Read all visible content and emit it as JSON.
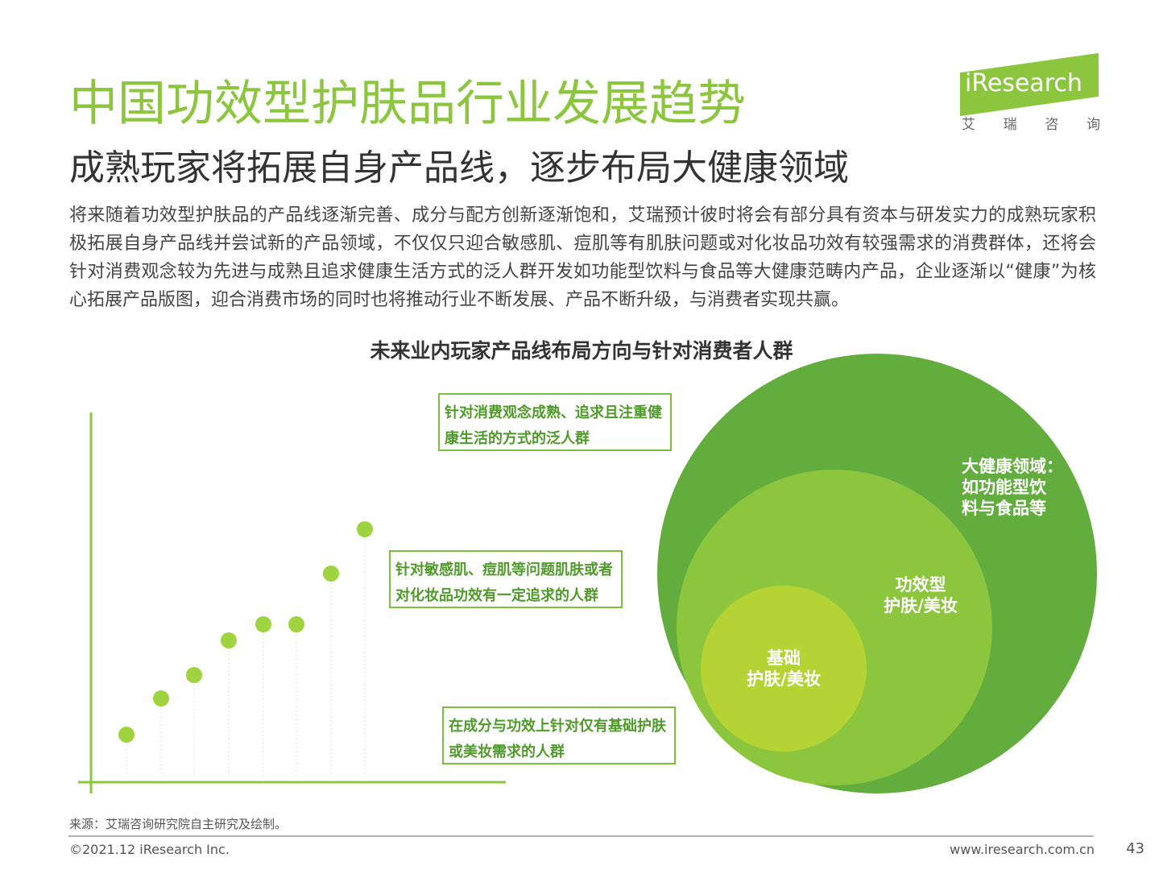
{
  "header": {
    "title": "中国功效型护肤品行业发展趋势",
    "subtitle": "成熟玩家将拓展自身产品线，逐步布局大健康领域"
  },
  "logo": {
    "brand": "iResearch",
    "chinese": [
      "艾",
      "瑞",
      "咨",
      "询"
    ]
  },
  "body": "将来随着功效型护肤品的产品线逐渐完善、成分与配方创新逐渐饱和，艾瑞预计彼时将会有部分具有资本与研发实力的成熟玩家积极拓展自身产品线并尝试新的产品领域，不仅仅只迎合敏感肌、痘肌等有肌肤问题或对化妆品功效有较强需求的消费群体，还将会针对消费观念较为先进与成熟且追求健康生活方式的泛人群开发如功能型饮料与食品等大健康范畴内产品，企业逐渐以“健康”为核心拓展产品版图，迎合消费市场的同时也将推动行业不断发展、产品不断升级，与消费者实现共赢。",
  "diagram": {
    "title": "未来业内玩家产品线布局方向与针对消费者人群",
    "boxes": [
      [
        "针对消费观念成熟、追求且注重健",
        "康生活的方式的泛人群"
      ],
      [
        "针对敏感肌、痘肌等问题肌肤或者",
        "对化妆品功效有一定追求的人群"
      ],
      [
        "在成分与功效上针对仅有基础护肤",
        "或美妆需求的人群"
      ]
    ],
    "circles": [
      [
        "大健康领域：",
        "如功能型饮",
        "料与食品等"
      ],
      [
        "功效型",
        "护肤/美妆"
      ],
      [
        "基础",
        "护肤/美妆"
      ]
    ]
  },
  "footer": {
    "source": "来源：艾瑞咨询研究院自主研究及绘制。",
    "copyright": "©2021.12 iResearch Inc.",
    "url": "www.iresearch.com.cn",
    "page": "43"
  }
}
